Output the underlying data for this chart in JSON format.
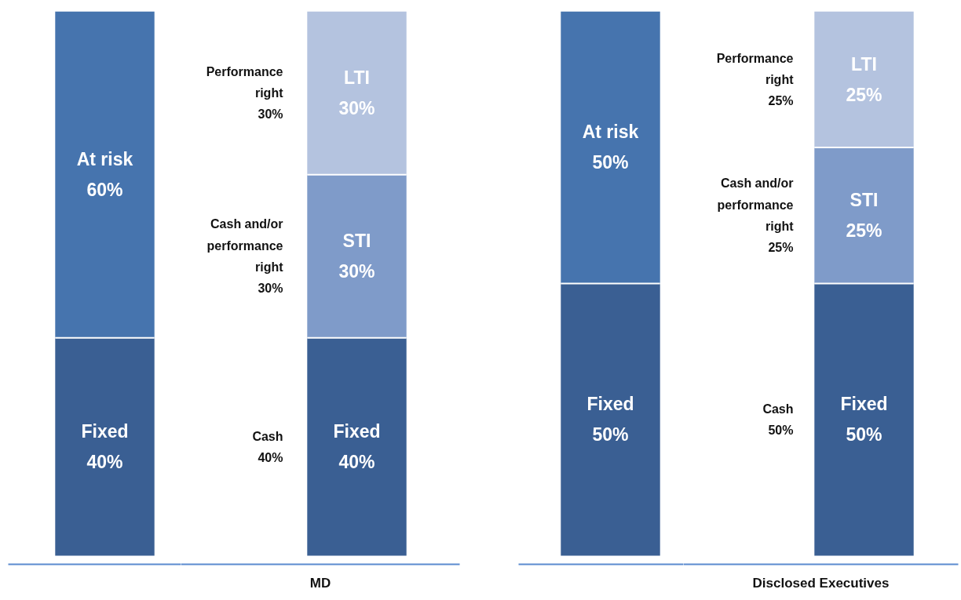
{
  "chart_data": [
    {
      "type": "bar",
      "stacked": true,
      "categories": [
        null
      ],
      "tick_labels": false,
      "series": [
        {
          "name": "Fixed",
          "color": "#3a5f93",
          "values": [
            40
          ],
          "value_labels": [
            "40%"
          ]
        },
        {
          "name": "At risk",
          "color": "#4674ae",
          "values": [
            60
          ],
          "value_labels": [
            "60%"
          ]
        }
      ]
    },
    {
      "type": "bar",
      "stacked": true,
      "xlabel": "MD",
      "categories": [
        null
      ],
      "tick_labels": false,
      "series": [
        {
          "name": "Fixed",
          "color": "#3a5f93",
          "values": [
            40
          ],
          "value_labels": [
            "40%"
          ]
        },
        {
          "name": "STI",
          "color": "#7f9bc9",
          "values": [
            30
          ],
          "value_labels": [
            "30%"
          ]
        },
        {
          "name": "LTI",
          "color": "#b4c3df",
          "values": [
            30
          ],
          "value_labels": [
            "30%"
          ]
        }
      ],
      "annotations": [
        "Cash\n40%",
        "Cash and/or\nperformance\nright\n30%",
        "Performance\nright\n30%"
      ]
    },
    {
      "type": "bar",
      "stacked": true,
      "categories": [
        null
      ],
      "tick_labels": false,
      "series": [
        {
          "name": "Fixed",
          "color": "#3a5f93",
          "values": [
            50
          ],
          "value_labels": [
            "50%"
          ]
        },
        {
          "name": "At risk",
          "color": "#4674ae",
          "values": [
            50
          ],
          "value_labels": [
            "50%"
          ]
        }
      ]
    },
    {
      "type": "bar",
      "stacked": true,
      "xlabel": "Disclosed Executives",
      "categories": [
        null
      ],
      "tick_labels": false,
      "series": [
        {
          "name": "Fixed",
          "color": "#3a5f93",
          "values": [
            50
          ],
          "value_labels": [
            "50%"
          ]
        },
        {
          "name": "STI",
          "color": "#7f9bc9",
          "values": [
            25
          ],
          "value_labels": [
            "25%"
          ]
        },
        {
          "name": "LTI",
          "color": "#b4c3df",
          "values": [
            25
          ],
          "value_labels": [
            "25%"
          ]
        }
      ],
      "annotations": [
        "Cash\n50%",
        "Cash and/or\nperformance\nright\n25%",
        "Performance\nright\n25%"
      ]
    }
  ]
}
